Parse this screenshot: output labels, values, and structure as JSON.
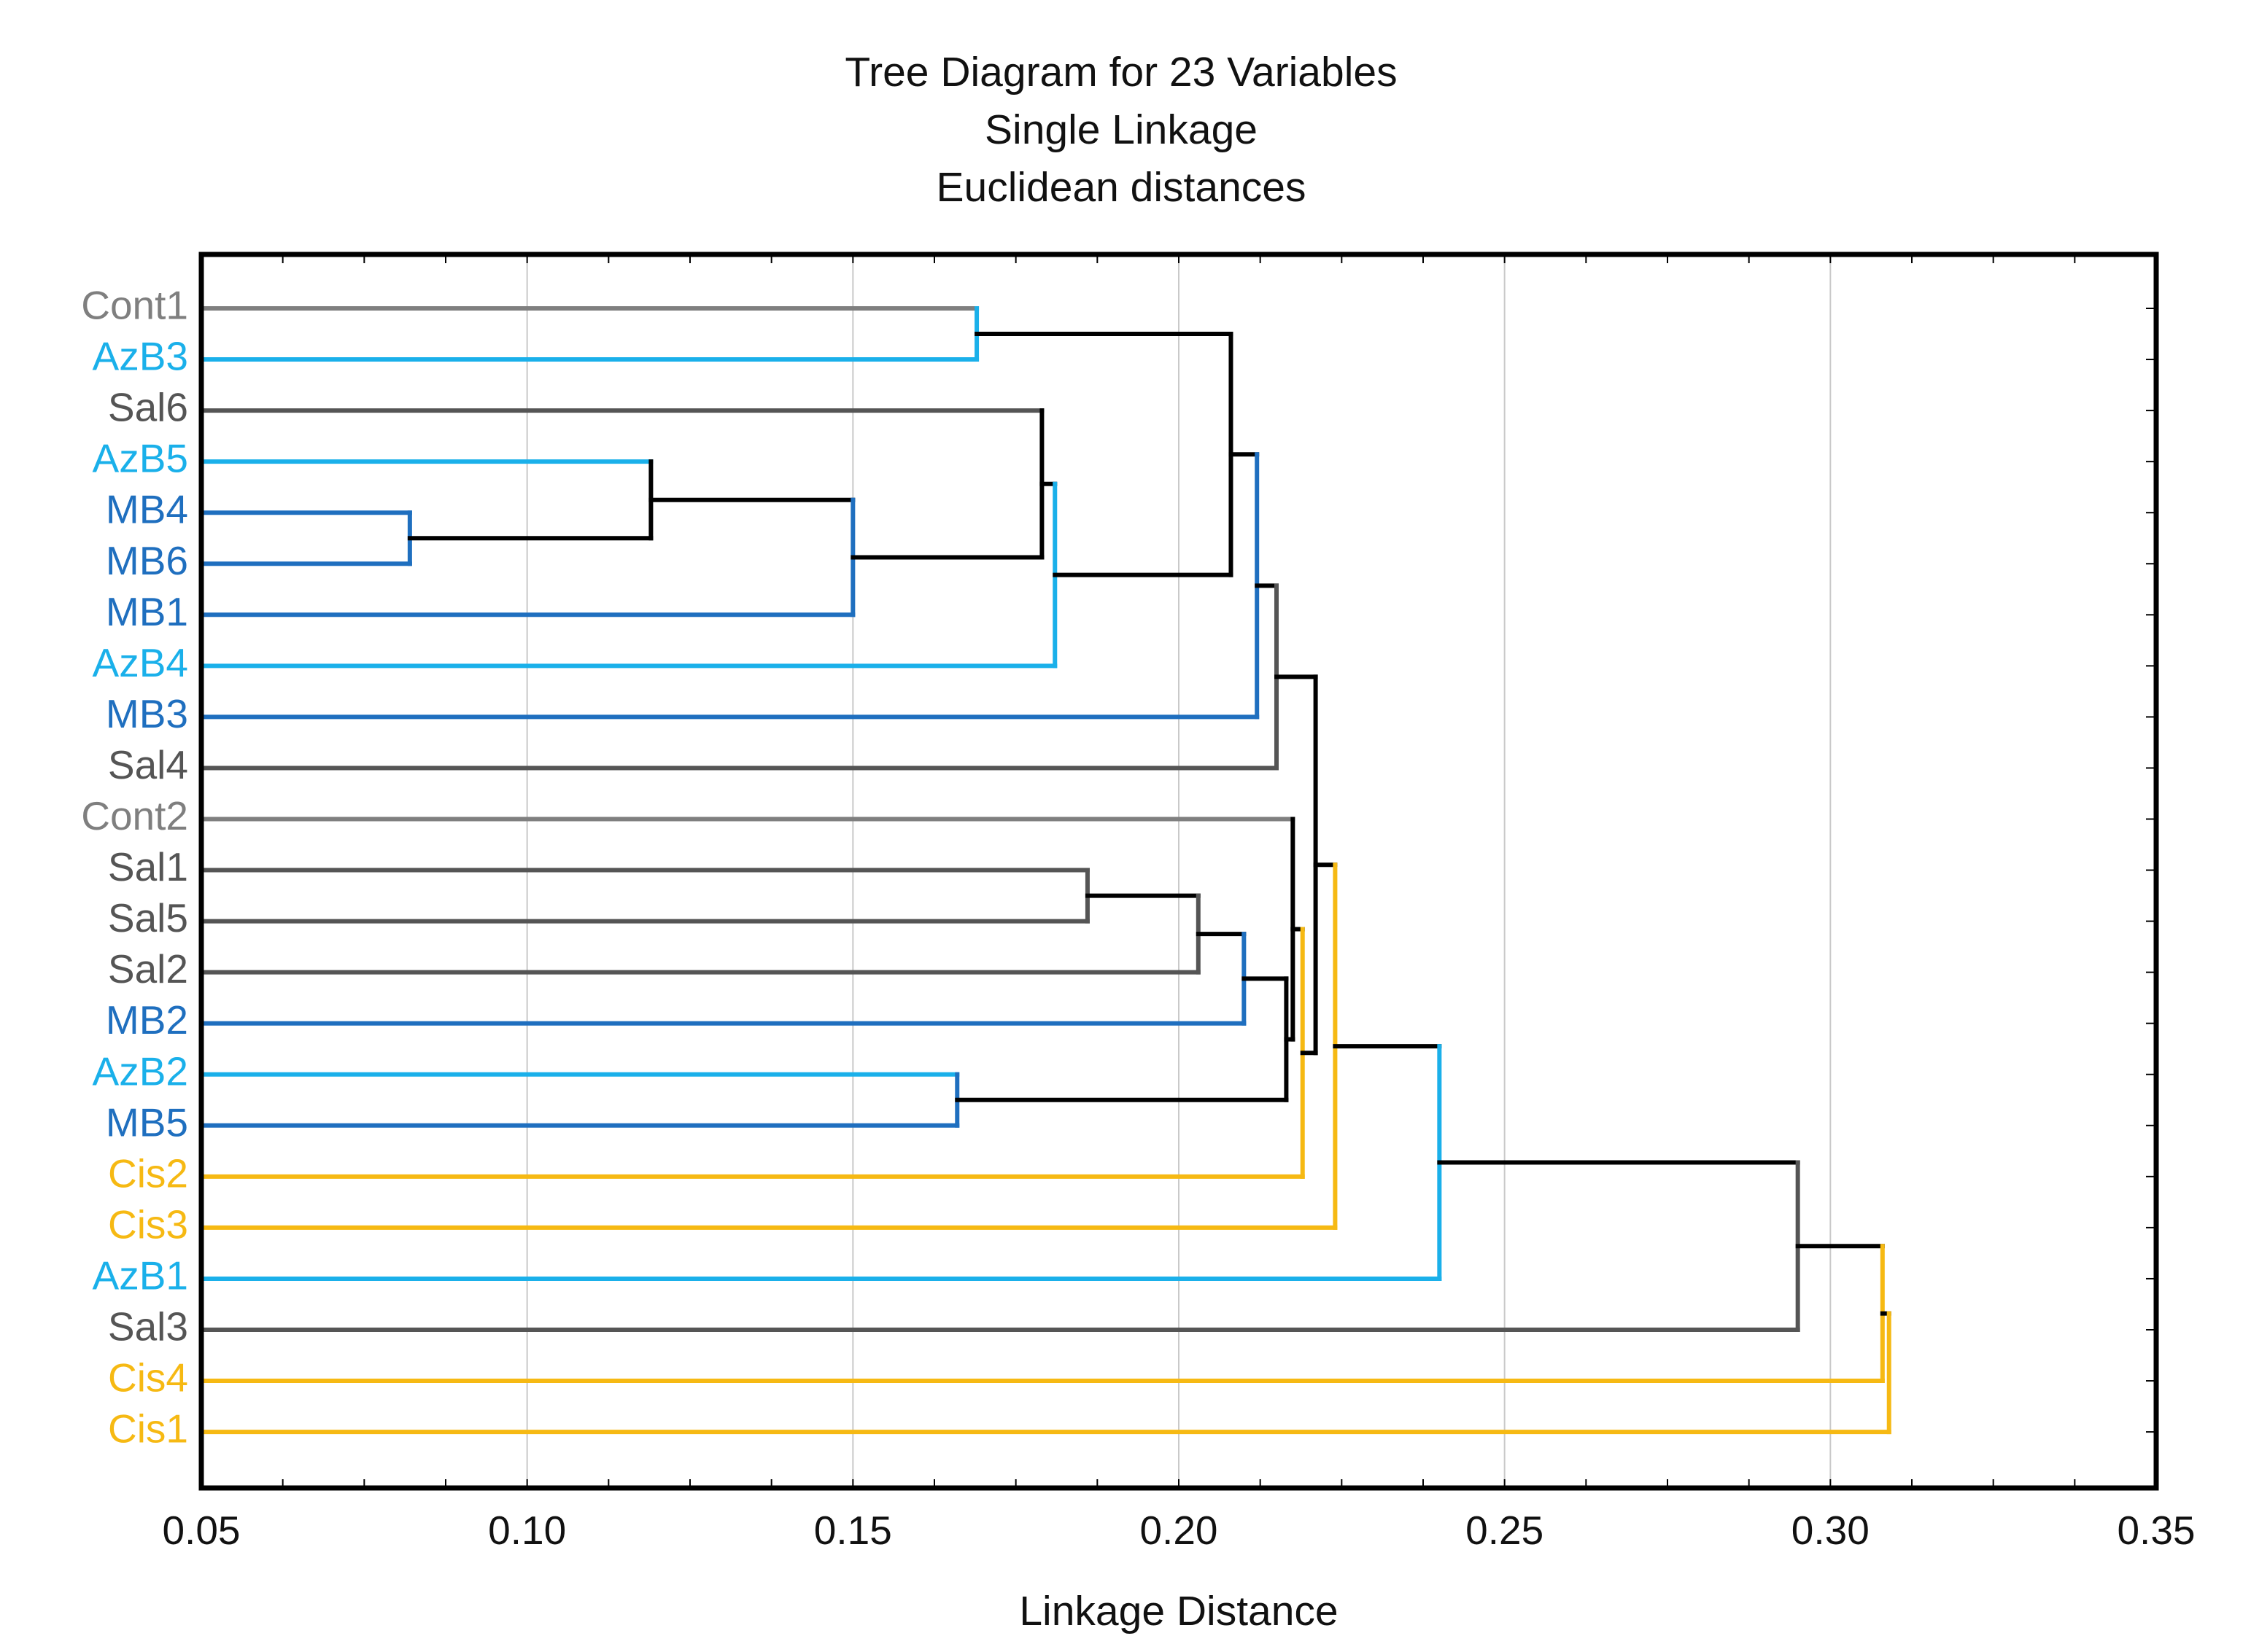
{
  "chart_data": {
    "type": "dendrogram",
    "title": [
      "Tree Diagram for 23 Variables",
      "Single Linkage",
      "Euclidean distances"
    ],
    "xlabel": "Linkage Distance",
    "xlim": [
      0.05,
      0.35
    ],
    "xticks": [
      "0.05",
      "0.10",
      "0.15",
      "0.20",
      "0.25",
      "0.30",
      "0.35"
    ],
    "grid": "vertical",
    "leaves": [
      {
        "name": "Cont1",
        "group": "Cont"
      },
      {
        "name": "AzB3",
        "group": "AzB"
      },
      {
        "name": "Sal6",
        "group": "Sal"
      },
      {
        "name": "AzB5",
        "group": "AzB"
      },
      {
        "name": "MB4",
        "group": "MB"
      },
      {
        "name": "MB6",
        "group": "MB"
      },
      {
        "name": "MB1",
        "group": "MB"
      },
      {
        "name": "AzB4",
        "group": "AzB"
      },
      {
        "name": "MB3",
        "group": "MB"
      },
      {
        "name": "Sal4",
        "group": "Sal"
      },
      {
        "name": "Cont2",
        "group": "Cont"
      },
      {
        "name": "Sal1",
        "group": "Sal"
      },
      {
        "name": "Sal5",
        "group": "Sal"
      },
      {
        "name": "Sal2",
        "group": "Sal"
      },
      {
        "name": "MB2",
        "group": "MB"
      },
      {
        "name": "AzB2",
        "group": "AzB"
      },
      {
        "name": "MB5",
        "group": "MB"
      },
      {
        "name": "Cis2",
        "group": "Cis"
      },
      {
        "name": "Cis3",
        "group": "Cis"
      },
      {
        "name": "AzB1",
        "group": "AzB"
      },
      {
        "name": "Sal3",
        "group": "Sal"
      },
      {
        "name": "Cis4",
        "group": "Cis"
      },
      {
        "name": "Cis1",
        "group": "Cis"
      }
    ],
    "merges": [
      {
        "id": "M1",
        "a": "MB4",
        "b": "MB6",
        "distance": 0.082
      },
      {
        "id": "M2",
        "a": "AzB5",
        "b": "M1",
        "distance": 0.119
      },
      {
        "id": "M3",
        "a": "M2",
        "b": "MB1",
        "distance": 0.15
      },
      {
        "id": "M4",
        "a": "AzB2",
        "b": "MB5",
        "distance": 0.166
      },
      {
        "id": "M5",
        "a": "Cont1",
        "b": "AzB3",
        "distance": 0.169
      },
      {
        "id": "M6",
        "a": "Sal6",
        "b": "M3",
        "distance": 0.179
      },
      {
        "id": "M7",
        "a": "M6",
        "b": "AzB4",
        "distance": 0.181
      },
      {
        "id": "M8",
        "a": "Sal1",
        "b": "Sal5",
        "distance": 0.186
      },
      {
        "id": "M9",
        "a": "M8",
        "b": "Sal2",
        "distance": 0.203
      },
      {
        "id": "M10",
        "a": "M5",
        "b": "M7",
        "distance": 0.208
      },
      {
        "id": "M11",
        "a": "M9",
        "b": "MB2",
        "distance": 0.21
      },
      {
        "id": "M12",
        "a": "M10",
        "b": "MB3",
        "distance": 0.212
      },
      {
        "id": "M13",
        "a": "M12",
        "b": "Sal4",
        "distance": 0.215
      },
      {
        "id": "M14",
        "a": "M11",
        "b": "M4",
        "distance": 0.2165
      },
      {
        "id": "M15",
        "a": "Cont2",
        "b": "M14",
        "distance": 0.2175
      },
      {
        "id": "M16",
        "a": "M15",
        "b": "Cis2",
        "distance": 0.219
      },
      {
        "id": "M17",
        "a": "M13",
        "b": "M16",
        "distance": 0.221
      },
      {
        "id": "M18",
        "a": "M17",
        "b": "Cis3",
        "distance": 0.224
      },
      {
        "id": "M19",
        "a": "M18",
        "b": "AzB1",
        "distance": 0.24
      },
      {
        "id": "M20",
        "a": "M19",
        "b": "Sal3",
        "distance": 0.295
      },
      {
        "id": "M21",
        "a": "M20",
        "b": "Cis4",
        "distance": 0.308
      },
      {
        "id": "M22",
        "a": "M21",
        "b": "Cis1",
        "distance": 0.309
      }
    ],
    "colors": {
      "Cont": "#7f7f7f",
      "AzB": "#1ab0ea",
      "Sal": "#555555",
      "MB": "#1f6fbf",
      "Cis": "#f6b913",
      "merge": "#000000",
      "grid": "#c9c9c9",
      "frame": "#000000"
    }
  }
}
